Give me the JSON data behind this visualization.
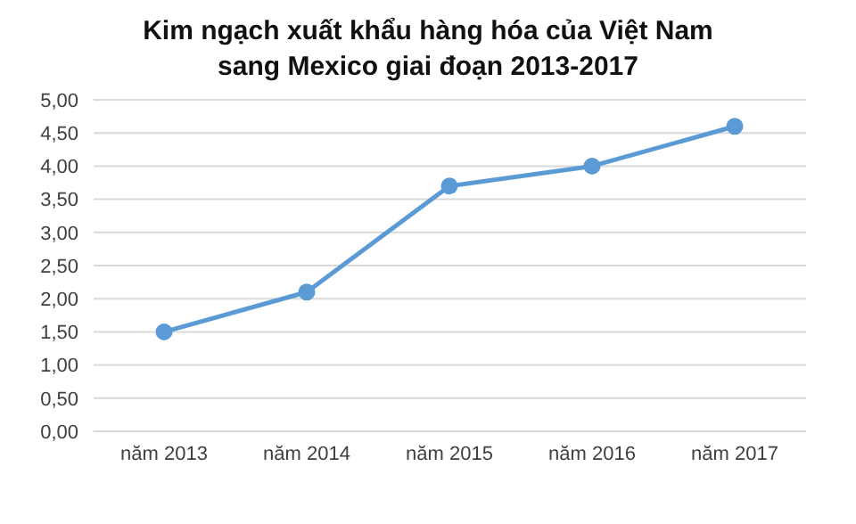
{
  "chart_data": {
    "type": "line",
    "title": "Kim ngạch xuất khẩu hàng hóa của Việt Nam sang Mexico giai đoạn 2013-2017",
    "categories": [
      "năm 2013",
      "năm 2014",
      "năm 2015",
      "năm 2016",
      "năm 2017"
    ],
    "series": [
      {
        "color": "#5b9bd5",
        "values": [
          1.5,
          2.1,
          3.7,
          4.0,
          4.6
        ]
      }
    ],
    "ylim": [
      0,
      5
    ],
    "yticks": [
      {
        "value": 0,
        "label": "0,00"
      },
      {
        "value": 0.5,
        "label": "0,50"
      },
      {
        "value": 1,
        "label": "1,00"
      },
      {
        "value": 1.5,
        "label": "1,50"
      },
      {
        "value": 2,
        "label": "2,00"
      },
      {
        "value": 2.5,
        "label": "2,50"
      },
      {
        "value": 3,
        "label": "3,00"
      },
      {
        "value": 3.5,
        "label": "3,50"
      },
      {
        "value": 4,
        "label": "4,00"
      },
      {
        "value": 4.5,
        "label": "4,50"
      },
      {
        "value": 5,
        "label": "5,00"
      }
    ],
    "grid": "y",
    "marker": "circle",
    "legend": false
  }
}
